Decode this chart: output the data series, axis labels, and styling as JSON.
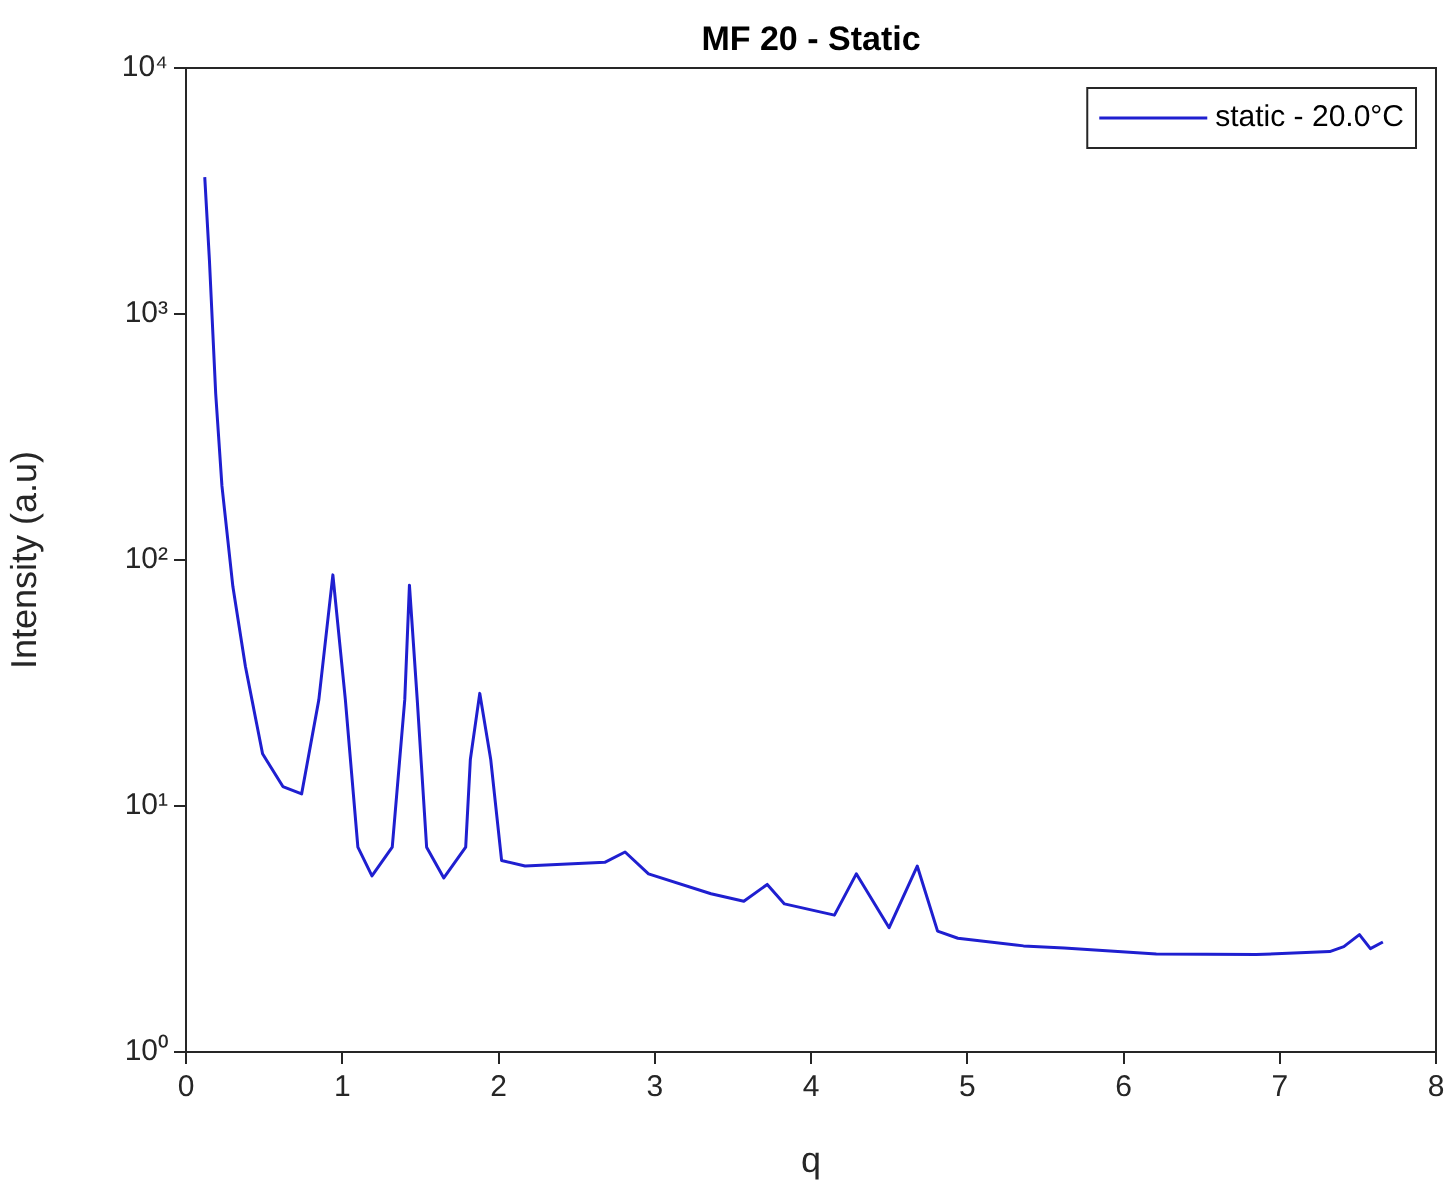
{
  "chart_data": {
    "type": "line",
    "title": "MF 20 - Static",
    "xlabel": "q",
    "ylabel": "Intensity (a.u)",
    "log": "y",
    "xlim": [
      0,
      8
    ],
    "xticks": [
      0,
      1,
      2,
      3,
      4,
      5,
      6,
      7,
      8
    ],
    "ylim": [
      1,
      10000
    ],
    "yticks": [
      {
        "value": 1,
        "label": "10⁰"
      },
      {
        "value": 10,
        "label": "10¹"
      },
      {
        "value": 100,
        "label": "10²"
      },
      {
        "value": 1000,
        "label": "10³"
      },
      {
        "value": 10000,
        "label": "10⁴"
      }
    ],
    "grid": false,
    "legend": "top right",
    "marker": "none",
    "line_style": "solid",
    "series": [
      {
        "name": "static - 20.0°C",
        "color": "#1f1fd0",
        "x": [
          0.12,
          0.15,
          0.19,
          0.23,
          0.3,
          0.38,
          0.49,
          0.62,
          0.74,
          0.85,
          0.94,
          1.02,
          1.1,
          1.19,
          1.32,
          1.4,
          1.43,
          1.48,
          1.54,
          1.65,
          1.79,
          1.82,
          1.88,
          1.95,
          2.02,
          2.17,
          2.68,
          2.81,
          2.96,
          3.36,
          3.57,
          3.72,
          3.83,
          4.15,
          4.29,
          4.5,
          4.68,
          4.81,
          4.94,
          5.36,
          5.62,
          6.21,
          6.85,
          7.32,
          7.41,
          7.51,
          7.58,
          7.66
        ],
        "values": [
          3600,
          1650,
          475,
          200,
          78,
          37,
          16.3,
          12,
          11.2,
          27,
          87,
          27,
          6.8,
          5.2,
          6.8,
          27,
          79,
          27,
          6.8,
          5.1,
          6.8,
          15.5,
          28.7,
          15.5,
          6,
          5.7,
          5.9,
          6.5,
          5.3,
          4.4,
          4.1,
          4.8,
          4,
          3.6,
          5.3,
          3.2,
          5.7,
          3.1,
          2.9,
          2.7,
          2.65,
          2.5,
          2.49,
          2.56,
          2.68,
          3,
          2.63,
          2.8
        ]
      }
    ]
  }
}
